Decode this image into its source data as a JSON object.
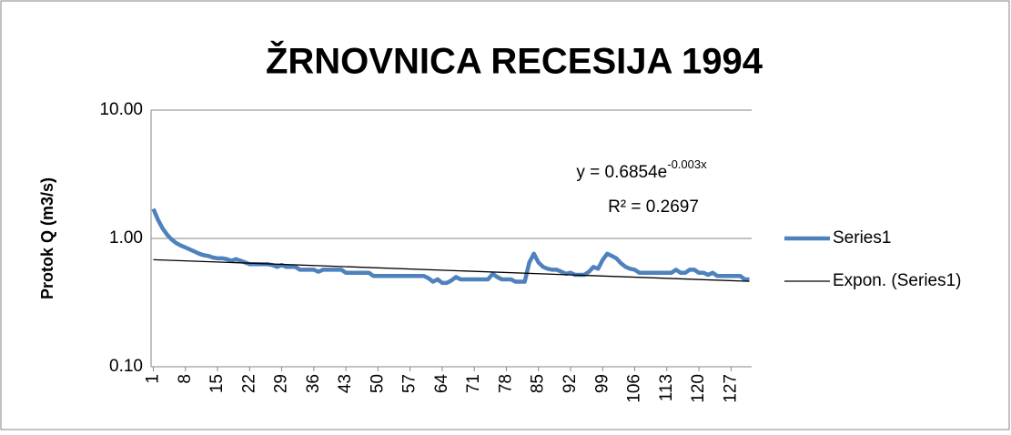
{
  "chart_data": {
    "type": "line",
    "title": "ŽRNOVNICA RECESIJA 1994",
    "y_label": "Protok Q (m3/s)",
    "log_scale": true,
    "grid": true,
    "legend": "right",
    "categories": [
      1,
      null,
      null,
      null,
      null,
      null,
      null,
      8,
      null,
      null,
      null,
      null,
      null,
      null,
      15,
      null,
      null,
      null,
      null,
      null,
      null,
      22,
      null,
      null,
      null,
      null,
      null,
      null,
      29,
      null,
      null,
      null,
      null,
      null,
      null,
      36,
      null,
      null,
      null,
      null,
      null,
      null,
      43,
      null,
      null,
      null,
      null,
      null,
      null,
      50,
      null,
      null,
      null,
      null,
      null,
      null,
      57,
      null,
      null,
      null,
      null,
      null,
      null,
      64,
      null,
      null,
      null,
      null,
      null,
      null,
      71,
      null,
      null,
      null,
      null,
      null,
      null,
      78,
      null,
      null,
      null,
      null,
      null,
      null,
      85,
      null,
      null,
      null,
      null,
      null,
      null,
      92,
      null,
      null,
      null,
      null,
      null,
      null,
      99,
      null,
      null,
      null,
      null,
      null,
      null,
      106,
      null,
      null,
      null,
      null,
      null,
      null,
      113,
      null,
      null,
      null,
      null,
      null,
      null,
      120,
      null,
      null,
      null,
      null,
      null,
      null,
      127,
      null,
      null,
      null,
      null
    ],
    "series": [
      {
        "name": "Series1",
        "color": "#4f81bd",
        "values": [
          1.7,
          1.4,
          1.2,
          1.07,
          0.98,
          0.92,
          0.88,
          0.85,
          0.82,
          0.79,
          0.76,
          0.74,
          0.73,
          0.71,
          0.7,
          0.7,
          0.69,
          0.67,
          0.69,
          0.67,
          0.65,
          0.63,
          0.63,
          0.63,
          0.63,
          0.63,
          0.62,
          0.6,
          0.62,
          0.6,
          0.6,
          0.6,
          0.57,
          0.57,
          0.57,
          0.57,
          0.55,
          0.57,
          0.57,
          0.57,
          0.57,
          0.57,
          0.54,
          0.54,
          0.54,
          0.54,
          0.54,
          0.54,
          0.51,
          0.51,
          0.51,
          0.51,
          0.51,
          0.51,
          0.51,
          0.51,
          0.51,
          0.51,
          0.51,
          0.51,
          0.49,
          0.46,
          0.48,
          0.45,
          0.45,
          0.47,
          0.5,
          0.48,
          0.48,
          0.48,
          0.48,
          0.48,
          0.48,
          0.48,
          0.53,
          0.5,
          0.48,
          0.48,
          0.48,
          0.46,
          0.46,
          0.46,
          0.65,
          0.76,
          0.65,
          0.6,
          0.58,
          0.57,
          0.57,
          0.55,
          0.53,
          0.54,
          0.52,
          0.52,
          0.52,
          0.55,
          0.6,
          0.58,
          0.68,
          0.76,
          0.73,
          0.7,
          0.64,
          0.6,
          0.58,
          0.57,
          0.54,
          0.54,
          0.54,
          0.54,
          0.54,
          0.54,
          0.54,
          0.54,
          0.57,
          0.54,
          0.54,
          0.57,
          0.57,
          0.54,
          0.54,
          0.52,
          0.54,
          0.51,
          0.51,
          0.51,
          0.51,
          0.51,
          0.51,
          0.48,
          0.48
        ]
      }
    ],
    "trendline": {
      "name": "Expon. (Series1)",
      "color": "#000000",
      "x": [
        1,
        131
      ],
      "values": [
        0.683,
        0.463
      ],
      "equation": "y = 0.6854e",
      "equation_exponent": "-0.003x",
      "r2": "R² = 0.2697"
    },
    "ylim": [
      0.1,
      10
    ],
    "yticks": [
      {
        "value": 10,
        "label": "10.00"
      },
      {
        "value": 1,
        "label": "1.00"
      },
      {
        "value": 0.1,
        "label": "0.10"
      }
    ]
  }
}
